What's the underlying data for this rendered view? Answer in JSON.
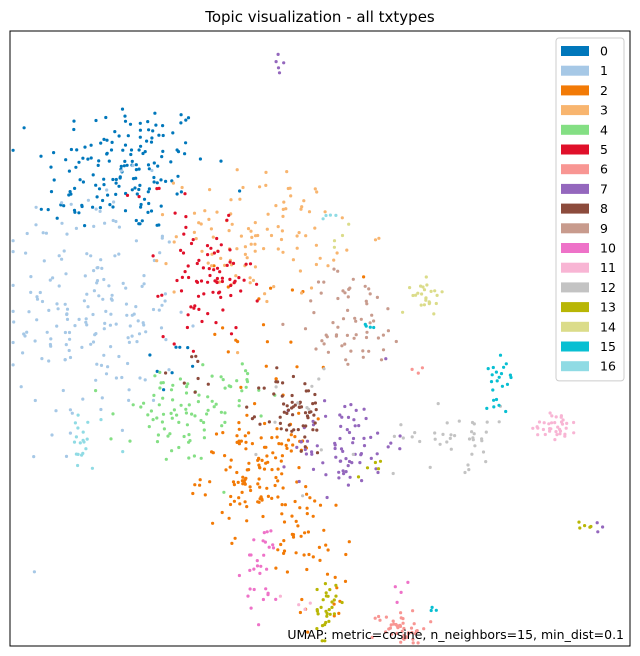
{
  "chart_data": {
    "type": "scatter",
    "title": "Topic visualization - all txtypes",
    "xlabel": "",
    "ylabel": "",
    "xlim": [
      0,
      100
    ],
    "ylim": [
      0,
      100
    ],
    "axes_ticks": "none",
    "grid": false,
    "legend_position": "top-right",
    "annotation": "UMAP: metric=cosine, n_neighbors=15, min_dist=0.1",
    "series": [
      {
        "name": "0",
        "color": "#0077bb",
        "clusters": [
          {
            "cx": 19,
            "cy": 78,
            "sx": 6.5,
            "sy": 5.5,
            "n": 150
          },
          {
            "cx": 8.5,
            "cy": 72,
            "sx": 2.2,
            "sy": 2.2,
            "n": 10
          },
          {
            "cx": 26,
            "cy": 45,
            "sx": 2.5,
            "sy": 2.5,
            "n": 8
          }
        ]
      },
      {
        "name": "1",
        "color": "#a6c8e6",
        "clusters": [
          {
            "cx": 14,
            "cy": 54,
            "sx": 6.5,
            "sy": 10,
            "n": 170
          },
          {
            "cx": 6,
            "cy": 65,
            "sx": 2.0,
            "sy": 3.5,
            "n": 12
          }
        ]
      },
      {
        "name": "2",
        "color": "#f27a06",
        "clusters": [
          {
            "cx": 40,
            "cy": 28,
            "sx": 4.5,
            "sy": 4.5,
            "n": 130
          },
          {
            "cx": 48,
            "cy": 16,
            "sx": 3.5,
            "sy": 5,
            "n": 35
          },
          {
            "cx": 52,
            "cy": 8,
            "sx": 2.5,
            "sy": 2.5,
            "n": 10
          },
          {
            "cx": 42,
            "cy": 52,
            "sx": 5,
            "sy": 6,
            "n": 22
          }
        ]
      },
      {
        "name": "3",
        "color": "#f8b56f",
        "clusters": [
          {
            "cx": 40,
            "cy": 67,
            "sx": 6.5,
            "sy": 5,
            "n": 110
          }
        ]
      },
      {
        "name": "4",
        "color": "#84df84",
        "clusters": [
          {
            "cx": 27,
            "cy": 37,
            "sx": 5.5,
            "sy": 4,
            "n": 80
          },
          {
            "cx": 37,
            "cy": 43,
            "sx": 3,
            "sy": 2.5,
            "n": 14
          }
        ]
      },
      {
        "name": "5",
        "color": "#e0102a",
        "clusters": [
          {
            "cx": 32,
            "cy": 59,
            "sx": 3.5,
            "sy": 4.5,
            "n": 80
          },
          {
            "cx": 24,
            "cy": 74,
            "sx": 5,
            "sy": 2,
            "n": 6
          }
        ]
      },
      {
        "name": "6",
        "color": "#f89693",
        "clusters": [
          {
            "cx": 63,
            "cy": 3,
            "sx": 2.2,
            "sy": 1.5,
            "n": 45
          },
          {
            "cx": 66,
            "cy": 45,
            "sx": 0.6,
            "sy": 0.6,
            "n": 3
          }
        ]
      },
      {
        "name": "7",
        "color": "#9467bd",
        "clusters": [
          {
            "cx": 54,
            "cy": 33,
            "sx": 4,
            "sy": 4,
            "n": 75
          },
          {
            "cx": 43,
            "cy": 95,
            "sx": 0.5,
            "sy": 1,
            "n": 5
          },
          {
            "cx": 95,
            "cy": 19,
            "sx": 0.6,
            "sy": 0.6,
            "n": 3
          }
        ]
      },
      {
        "name": "8",
        "color": "#8c4b3c",
        "clusters": [
          {
            "cx": 46,
            "cy": 38,
            "sx": 2.5,
            "sy": 3.5,
            "n": 60
          },
          {
            "cx": 29,
            "cy": 43,
            "sx": 3,
            "sy": 3,
            "n": 8
          }
        ]
      },
      {
        "name": "9",
        "color": "#c89b8d",
        "clusters": [
          {
            "cx": 55,
            "cy": 53,
            "sx": 4.5,
            "sy": 4,
            "n": 60
          }
        ]
      },
      {
        "name": "10",
        "color": "#ee72c8",
        "clusters": [
          {
            "cx": 41,
            "cy": 12,
            "sx": 1.5,
            "sy": 4,
            "n": 30
          },
          {
            "cx": 63,
            "cy": 9,
            "sx": 1,
            "sy": 1,
            "n": 4
          }
        ]
      },
      {
        "name": "11",
        "color": "#f8b5d4",
        "clusters": [
          {
            "cx": 88,
            "cy": 36,
            "sx": 1.8,
            "sy": 1.2,
            "n": 35
          },
          {
            "cx": 47,
            "cy": 8,
            "sx": 1.5,
            "sy": 1.5,
            "n": 4
          }
        ]
      },
      {
        "name": "12",
        "color": "#c3c3c3",
        "clusters": [
          {
            "cx": 72,
            "cy": 34,
            "sx": 5,
            "sy": 2.5,
            "n": 40
          },
          {
            "cx": 48,
            "cy": 38,
            "sx": 6,
            "sy": 6,
            "n": 12
          }
        ]
      },
      {
        "name": "13",
        "color": "#b8b605",
        "clusters": [
          {
            "cx": 51,
            "cy": 6,
            "sx": 0.8,
            "sy": 2.5,
            "n": 30
          },
          {
            "cx": 93,
            "cy": 19.5,
            "sx": 0.6,
            "sy": 0.4,
            "n": 5
          },
          {
            "cx": 58,
            "cy": 30,
            "sx": 1.5,
            "sy": 1.5,
            "n": 5
          }
        ]
      },
      {
        "name": "14",
        "color": "#dbdc8a",
        "clusters": [
          {
            "cx": 67.5,
            "cy": 57,
            "sx": 1.3,
            "sy": 1.3,
            "n": 25
          },
          {
            "cx": 53,
            "cy": 66,
            "sx": 1.5,
            "sy": 1,
            "n": 4
          }
        ]
      },
      {
        "name": "15",
        "color": "#08bfd2",
        "clusters": [
          {
            "cx": 79,
            "cy": 44,
            "sx": 1.2,
            "sy": 2.2,
            "n": 22
          },
          {
            "cx": 58,
            "cy": 52,
            "sx": 1,
            "sy": 1,
            "n": 4
          },
          {
            "cx": 68.5,
            "cy": 5,
            "sx": 0.4,
            "sy": 0.6,
            "n": 3
          }
        ]
      },
      {
        "name": "16",
        "color": "#90dbe4",
        "clusters": [
          {
            "cx": 11,
            "cy": 33,
            "sx": 0.8,
            "sy": 2.5,
            "n": 14
          },
          {
            "cx": 14,
            "cy": 32,
            "sx": 3,
            "sy": 2,
            "n": 6
          },
          {
            "cx": 51,
            "cy": 70,
            "sx": 1,
            "sy": 0.5,
            "n": 4
          }
        ]
      }
    ]
  }
}
